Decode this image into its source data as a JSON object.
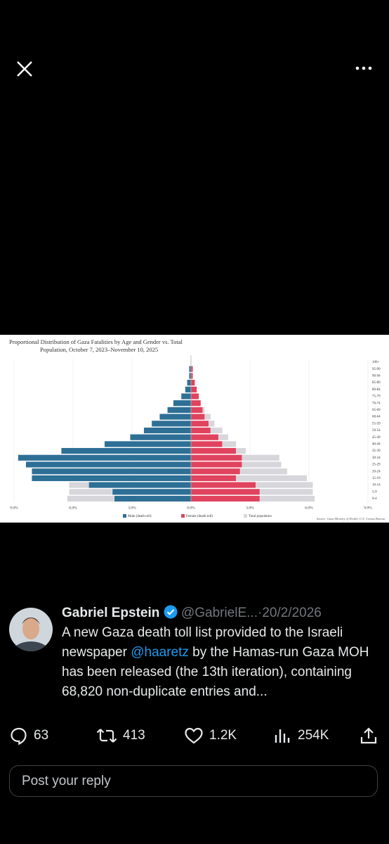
{
  "chart_data": {
    "type": "pyramid",
    "title": [
      "Proportional Distribution of Gaza Fatalities by Age and Gender vs. Total",
      "Population, October 7, 2023–November 10, 2025"
    ],
    "categories": [
      "0-4",
      "5-9",
      "10-14",
      "15-19",
      "20-24",
      "25-29",
      "30-34",
      "35-39",
      "40-44",
      "45-49",
      "50-54",
      "55-59",
      "60-64",
      "65-69",
      "70-74",
      "75-79",
      "80-84",
      "85-89",
      "90-94",
      "95-99",
      "100+"
    ],
    "series": [
      {
        "name": "Male (death toll)",
        "color": "#2e6f96",
        "values": [
          -3.9,
          -4.0,
          -5.2,
          -8.1,
          -8.1,
          -8.4,
          -8.8,
          -6.6,
          -4.4,
          -3.1,
          -2.4,
          -2.0,
          -1.6,
          -1.2,
          -0.9,
          -0.5,
          -0.3,
          -0.2,
          -0.1,
          -0.1,
          0
        ]
      },
      {
        "name": "Female (death toll)",
        "color": "#e0435e",
        "values": [
          3.5,
          3.5,
          3.3,
          2.3,
          2.5,
          2.6,
          2.6,
          2.3,
          1.6,
          1.4,
          1.0,
          0.9,
          0.7,
          0.6,
          0.5,
          0.4,
          0.3,
          0.2,
          0.1,
          0.1,
          0
        ]
      },
      {
        "name": "Total population",
        "color": "#d6d6db",
        "mirrored": true,
        "values": [
          6.3,
          6.2,
          6.2,
          5.9,
          4.9,
          4.6,
          4.5,
          2.8,
          2.3,
          1.9,
          1.6,
          1.2,
          1.0,
          0.7,
          0.5,
          0.4,
          0.3,
          0.2,
          0.1,
          0.1,
          0
        ]
      }
    ],
    "xlim": [
      -9,
      9
    ],
    "xticks": [
      {
        "value": -9,
        "label": "9.0%"
      },
      {
        "value": -6,
        "label": "6.0%"
      },
      {
        "value": -3,
        "label": "3.0%"
      },
      {
        "value": 0,
        "label": "0.0%"
      },
      {
        "value": 3,
        "label": "3.0%"
      },
      {
        "value": 6,
        "label": "6.0%"
      },
      {
        "value": 9,
        "label": "9.0%"
      }
    ],
    "grid": true,
    "source": "Source: Gaza Ministry of Health, U.S. Census Bureau"
  },
  "tweet": {
    "author_name": "Gabriel Epstein",
    "handle": "@GabrielE...",
    "separator": "·",
    "date": "20/2/2026",
    "text": [
      "A new Gaza death toll list provided to the Israeli newspaper ",
      "@haaretz",
      " by the Hamas-run Gaza MOH has been released (the 13th iteration), containing 68,820 non-duplicate entries and..."
    ]
  },
  "actions": {
    "replies": "63",
    "reposts": "413",
    "likes": "1.2K",
    "views": "254K"
  },
  "reply_box": {
    "placeholder": "Post your reply"
  }
}
